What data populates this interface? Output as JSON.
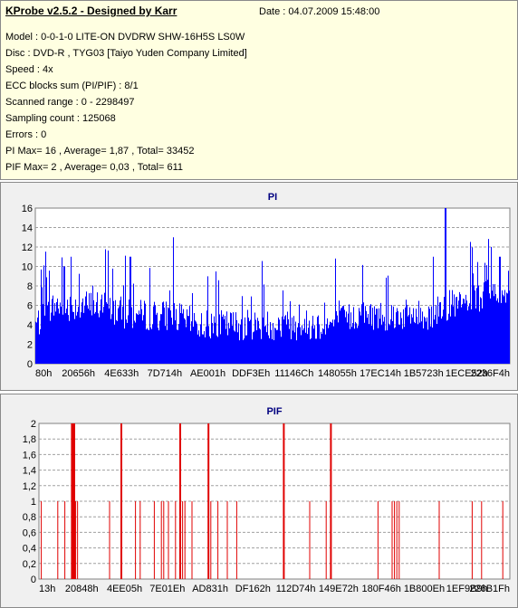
{
  "header": {
    "title": "KProbe v2.5.2 - Designed by Karr",
    "date": "Date : 04.07.2009 15:48:00",
    "lines": [
      "Model : 0-0-1-0 LITE-ON DVDRW SHW-16H5S  LS0W",
      "Disc : DVD-R , TYG03 [Taiyo Yuden Company Limited]",
      "Speed : 4x",
      "ECC blocks sum (PI/PIF) : 8/1",
      "Scanned range : 0 - 2298497",
      "Sampling count : 125068",
      "Errors : 0",
      "PI Max= 16 , Average= 1,87 , Total= 33452",
      "PIF Max= 2 , Average= 0,03 , Total= 611"
    ]
  },
  "colors": {
    "pi": "#0000ff",
    "pif": "#e00000",
    "title": "#000080",
    "panel": "#f0f0f0",
    "info_bg": "#ffffe1"
  },
  "chart_data": [
    {
      "type": "area",
      "title": "PI",
      "ylim": [
        0,
        16
      ],
      "yticks": [
        "0",
        "2",
        "4",
        "6",
        "8",
        "10",
        "12",
        "14",
        "16"
      ],
      "xticks": [
        "80h",
        "20656h",
        "4E633h",
        "7D714h",
        "AE001h",
        "DDF3Eh",
        "11146Ch",
        "148055h",
        "17EC14h",
        "1B5723h",
        "1ECE52h",
        "2236F4h"
      ],
      "grid": true,
      "max_value": 16,
      "profile": [
        [
          0,
          4
        ],
        [
          0.04,
          6
        ],
        [
          0.08,
          6
        ],
        [
          0.14,
          6
        ],
        [
          0.2,
          5
        ],
        [
          0.28,
          5
        ],
        [
          0.35,
          4
        ],
        [
          0.45,
          4
        ],
        [
          0.55,
          4
        ],
        [
          0.62,
          4
        ],
        [
          0.68,
          5
        ],
        [
          0.74,
          5
        ],
        [
          0.8,
          5
        ],
        [
          0.84,
          5
        ],
        [
          0.86,
          6
        ],
        [
          0.9,
          6
        ],
        [
          0.95,
          7
        ],
        [
          1,
          8
        ]
      ],
      "peaks": [
        [
          0.06,
          10
        ],
        [
          0.075,
          11
        ],
        [
          0.2,
          11
        ],
        [
          0.29,
          13
        ],
        [
          0.84,
          11
        ],
        [
          0.865,
          16
        ],
        [
          0.98,
          11
        ]
      ]
    },
    {
      "type": "bar",
      "title": "PIF",
      "ylim": [
        0,
        2
      ],
      "yticks": [
        "0",
        "0,2",
        "0,4",
        "0,6",
        "0,8",
        "1",
        "1,2",
        "1,4",
        "1,6",
        "1,8",
        "2"
      ],
      "xticks": [
        "13h",
        "20848h",
        "4EE05h",
        "7E01Eh",
        "AD831h",
        "DF162h",
        "112D74h",
        "149E72h",
        "180F46h",
        "1B800Eh",
        "1EF9B9h",
        "226B1Fh"
      ],
      "grid": true,
      "events": [
        [
          0.005,
          1
        ],
        [
          0.04,
          1
        ],
        [
          0.055,
          1
        ],
        [
          0.07,
          2
        ],
        [
          0.073,
          2
        ],
        [
          0.075,
          2
        ],
        [
          0.078,
          1
        ],
        [
          0.082,
          1
        ],
        [
          0.15,
          1
        ],
        [
          0.175,
          2
        ],
        [
          0.205,
          1
        ],
        [
          0.215,
          1
        ],
        [
          0.245,
          1
        ],
        [
          0.26,
          1
        ],
        [
          0.265,
          1
        ],
        [
          0.275,
          1
        ],
        [
          0.29,
          1
        ],
        [
          0.3,
          2
        ],
        [
          0.305,
          1
        ],
        [
          0.31,
          1
        ],
        [
          0.325,
          1
        ],
        [
          0.36,
          2
        ],
        [
          0.365,
          1
        ],
        [
          0.38,
          1
        ],
        [
          0.4,
          1
        ],
        [
          0.42,
          1
        ],
        [
          0.52,
          2
        ],
        [
          0.575,
          1
        ],
        [
          0.61,
          1
        ],
        [
          0.62,
          2
        ],
        [
          0.72,
          1
        ],
        [
          0.75,
          1
        ],
        [
          0.755,
          1
        ],
        [
          0.76,
          1
        ],
        [
          0.765,
          1
        ],
        [
          0.85,
          1
        ],
        [
          0.92,
          1
        ],
        [
          0.94,
          1
        ],
        [
          0.985,
          1
        ]
      ]
    }
  ]
}
